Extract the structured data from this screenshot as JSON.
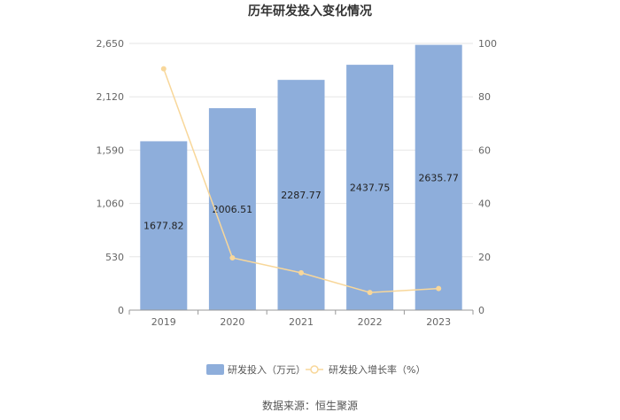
{
  "chart_data": {
    "type": "bar",
    "title": "历年研发投入变化情况",
    "categories": [
      "2019",
      "2020",
      "2021",
      "2022",
      "2023"
    ],
    "series": [
      {
        "name": "研发投入（万元）",
        "type": "bar",
        "axis": "left",
        "color": "#8eaedb",
        "values": [
          1677.82,
          2006.51,
          2287.77,
          2437.75,
          2635.77
        ],
        "labels": [
          "1677.82",
          "2006.51",
          "2287.77",
          "2437.75",
          "2635.77"
        ]
      },
      {
        "name": "研发投入增长率（%）",
        "type": "line",
        "axis": "right",
        "color": "#f8d79a",
        "values": [
          90.5,
          19.6,
          14.0,
          6.6,
          8.1
        ]
      }
    ],
    "y_left": {
      "min": 0,
      "max": 2650,
      "ticks": [
        "0",
        "530",
        "1,060",
        "1,590",
        "2,120",
        "2,650"
      ]
    },
    "y_right": {
      "min": 0,
      "max": 100,
      "ticks": [
        "0",
        "20",
        "40",
        "60",
        "80",
        "100"
      ]
    },
    "grid": true,
    "legend": "bottom-center"
  },
  "source": "数据来源：恒生聚源"
}
